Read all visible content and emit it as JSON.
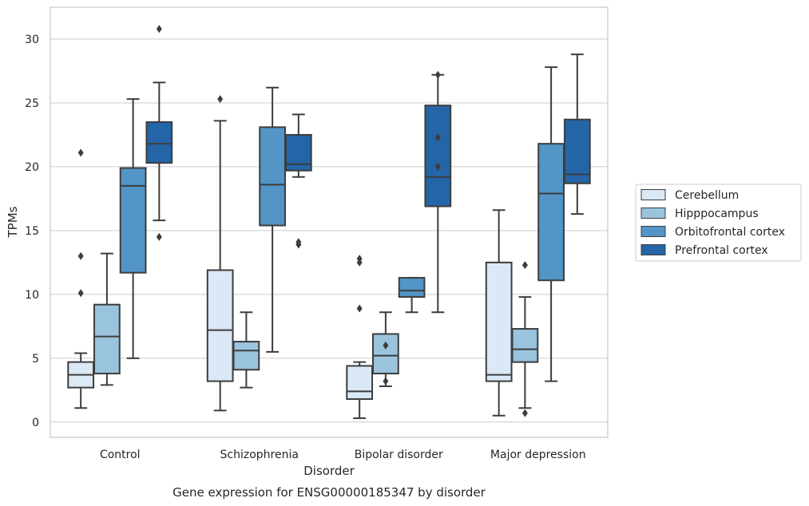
{
  "chart_data": {
    "type": "box",
    "xlabel": "Disorder",
    "ylabel": "TPMs",
    "caption": "Gene expression for ENSG00000185347 by disorder",
    "ylim": [
      -1.2,
      32.5
    ],
    "yticks": [
      0,
      5,
      10,
      15,
      20,
      25,
      30
    ],
    "grid": "horizontal",
    "legend_position": "outside-right",
    "categories": [
      "Control",
      "Schizophrenia",
      "Bipolar disorder",
      "Major depression"
    ],
    "series": [
      {
        "name": "Cerebellum",
        "color": "#dbe8f5",
        "boxes": [
          {
            "whisker_low": 1.1,
            "q1": 2.7,
            "median": 3.7,
            "q3": 4.7,
            "whisker_high": 5.4,
            "outliers": [
              10.1,
              13.0,
              21.1
            ]
          },
          {
            "whisker_low": 0.9,
            "q1": 3.2,
            "median": 7.2,
            "q3": 11.9,
            "whisker_high": 23.6,
            "outliers": [
              25.3
            ]
          },
          {
            "whisker_low": 0.3,
            "q1": 1.8,
            "median": 2.4,
            "q3": 4.4,
            "whisker_high": 4.7,
            "outliers": [
              8.9,
              12.5,
              12.8
            ]
          },
          {
            "whisker_low": 0.5,
            "q1": 3.2,
            "median": 3.7,
            "q3": 12.5,
            "whisker_high": 16.6,
            "outliers": []
          }
        ]
      },
      {
        "name": "Hipppocampus",
        "color": "#9ac3de",
        "boxes": [
          {
            "whisker_low": 2.9,
            "q1": 3.8,
            "median": 6.7,
            "q3": 9.2,
            "whisker_high": 13.2,
            "outliers": []
          },
          {
            "whisker_low": 2.7,
            "q1": 4.1,
            "median": 5.6,
            "q3": 6.3,
            "whisker_high": 8.6,
            "outliers": []
          },
          {
            "whisker_low": 2.8,
            "q1": 3.8,
            "median": 5.2,
            "q3": 6.9,
            "whisker_high": 8.6,
            "outliers": [
              3.2,
              6.0
            ]
          },
          {
            "whisker_low": 1.1,
            "q1": 4.7,
            "median": 5.7,
            "q3": 7.3,
            "whisker_high": 9.8,
            "outliers": [
              0.7,
              12.3
            ]
          }
        ]
      },
      {
        "name": "Orbitofrontal cortex",
        "color": "#5295c6",
        "boxes": [
          {
            "whisker_low": 5.0,
            "q1": 11.7,
            "median": 18.5,
            "q3": 19.9,
            "whisker_high": 25.3,
            "outliers": []
          },
          {
            "whisker_low": 5.5,
            "q1": 15.4,
            "median": 18.6,
            "q3": 23.1,
            "whisker_high": 26.2,
            "outliers": []
          },
          {
            "whisker_low": 8.6,
            "q1": 9.8,
            "median": 10.3,
            "q3": 11.3,
            "whisker_high": 11.3,
            "outliers": []
          },
          {
            "whisker_low": 3.2,
            "q1": 11.1,
            "median": 17.9,
            "q3": 21.8,
            "whisker_high": 27.8,
            "outliers": []
          }
        ]
      },
      {
        "name": "Prefrontal cortex",
        "color": "#2465a7",
        "boxes": [
          {
            "whisker_low": 15.8,
            "q1": 20.3,
            "median": 21.8,
            "q3": 23.5,
            "whisker_high": 26.6,
            "outliers": [
              14.5,
              30.8
            ]
          },
          {
            "whisker_low": 19.2,
            "q1": 19.7,
            "median": 20.2,
            "q3": 22.5,
            "whisker_high": 24.1,
            "outliers": [
              13.9,
              14.1
            ]
          },
          {
            "whisker_low": 8.6,
            "q1": 16.9,
            "median": 19.2,
            "q3": 24.8,
            "whisker_high": 27.2,
            "outliers": [
              20.0,
              22.3,
              27.2
            ]
          },
          {
            "whisker_low": 16.3,
            "q1": 18.7,
            "median": 19.4,
            "q3": 23.7,
            "whisker_high": 28.8,
            "outliers": []
          }
        ]
      }
    ]
  }
}
